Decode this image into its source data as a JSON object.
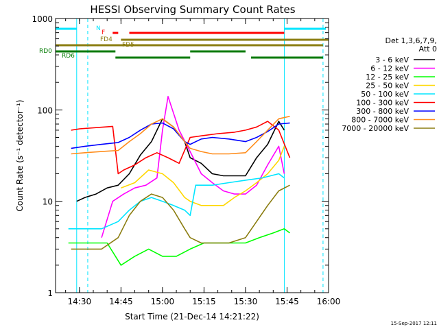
{
  "chart_data": {
    "type": "line",
    "title": "HESSI Observing Summary Count Rates",
    "xlabel": "Start Time (21-Dec-14 14:21:22)",
    "ylabel": "Count Rate (s⁻¹ detector⁻¹)",
    "y_scale": "log",
    "ylim": [
      1,
      1000
    ],
    "xlim": [
      "14:21:22",
      "16:00:00"
    ],
    "x_ticks": [
      "14:30",
      "14:45",
      "15:00",
      "15:15",
      "15:30",
      "15:45",
      "16:00"
    ],
    "y_ticks": [
      "1",
      "10",
      "100",
      "1000"
    ],
    "legend_header": [
      "Det 1,3,6,7,9,",
      "Att 0"
    ],
    "legend_position": "right",
    "footer": "15-Sep-2017 12:11",
    "series": [
      {
        "name": "3 - 6 keV",
        "color": "#000000",
        "x": [
          "14:29",
          "14:32",
          "14:36",
          "14:40",
          "14:44",
          "14:48",
          "14:52",
          "14:56",
          "15:00",
          "15:04",
          "15:08",
          "15:10",
          "15:14",
          "15:18",
          "15:22",
          "15:26",
          "15:30",
          "15:34",
          "15:38",
          "15:42",
          "15:44"
        ],
        "y": [
          10,
          11,
          12,
          14,
          15,
          20,
          32,
          45,
          80,
          65,
          45,
          30,
          26,
          20,
          19,
          19,
          19,
          30,
          42,
          75,
          60
        ]
      },
      {
        "name": "6 - 12 keV",
        "color": "#ff00ff",
        "x": [
          "14:38",
          "14:42",
          "14:46",
          "14:50",
          "14:54",
          "14:58",
          "15:00",
          "15:02",
          "15:06",
          "15:10",
          "15:14",
          "15:18",
          "15:22",
          "15:26",
          "15:30",
          "15:34",
          "15:38",
          "15:42",
          "15:44"
        ],
        "y": [
          4,
          10,
          12,
          14,
          15,
          18,
          60,
          140,
          60,
          35,
          20,
          16,
          13,
          12,
          12,
          15,
          25,
          40,
          20
        ]
      },
      {
        "name": "12 - 25 keV",
        "color": "#00ff00",
        "x": [
          "14:26",
          "14:40",
          "14:45",
          "14:50",
          "14:55",
          "15:00",
          "15:05",
          "15:10",
          "15:15",
          "15:20",
          "15:25",
          "15:30",
          "15:35",
          "15:40",
          "15:44",
          "15:46"
        ],
        "y": [
          3.5,
          3.5,
          2,
          2.5,
          3,
          2.5,
          2.5,
          3,
          3.5,
          3.5,
          3.5,
          3.5,
          4,
          4.5,
          5,
          4.5
        ]
      },
      {
        "name": "25 - 50 keV",
        "color": "#ffd700",
        "x": [
          "14:45",
          "14:50",
          "14:55",
          "15:00",
          "15:04",
          "15:08",
          "15:10",
          "15:14",
          "15:18",
          "15:22",
          "15:26",
          "15:30",
          "15:34",
          "15:38",
          "15:42",
          "15:44"
        ],
        "y": [
          14,
          16,
          22,
          20,
          16,
          11,
          10,
          9,
          9,
          9,
          11,
          13,
          16,
          20,
          28,
          40
        ]
      },
      {
        "name": "50 - 100 keV",
        "color": "#00e5ff",
        "x": [
          "14:26",
          "14:32",
          "14:38",
          "14:44",
          "14:48",
          "14:52",
          "14:56",
          "15:00",
          "15:04",
          "15:08",
          "15:10",
          "15:12",
          "15:18",
          "15:24",
          "15:30",
          "15:36",
          "15:42",
          "15:44"
        ],
        "y": [
          5,
          5,
          5,
          6,
          8,
          10,
          11,
          10,
          9,
          8,
          7,
          15,
          15,
          16,
          17,
          18,
          20,
          18
        ]
      },
      {
        "name": "100 - 300 keV",
        "color": "#ff0000",
        "x": [
          "14:27",
          "14:30",
          "14:36",
          "14:42",
          "14:44",
          "14:46",
          "14:50",
          "14:54",
          "14:58",
          "15:02",
          "15:06",
          "15:10",
          "15:14",
          "15:20",
          "15:26",
          "15:30",
          "15:34",
          "15:38",
          "15:42",
          "15:46"
        ],
        "y": [
          60,
          62,
          64,
          66,
          20,
          22,
          25,
          30,
          34,
          30,
          26,
          50,
          52,
          55,
          57,
          60,
          65,
          75,
          60,
          30
        ]
      },
      {
        "name": "300 - 800 keV",
        "color": "#0000ff",
        "x": [
          "14:27",
          "14:32",
          "14:38",
          "14:44",
          "14:48",
          "14:52",
          "14:56",
          "15:00",
          "15:04",
          "15:08",
          "15:10",
          "15:14",
          "15:18",
          "15:24",
          "15:30",
          "15:34",
          "15:38",
          "15:42",
          "15:46"
        ],
        "y": [
          38,
          40,
          42,
          44,
          50,
          60,
          70,
          72,
          62,
          45,
          42,
          48,
          50,
          48,
          45,
          50,
          58,
          70,
          72
        ]
      },
      {
        "name": "800 - 7000 keV",
        "color": "#ff8c1a",
        "x": [
          "14:27",
          "14:32",
          "14:38",
          "14:44",
          "14:48",
          "14:52",
          "14:56",
          "15:00",
          "15:04",
          "15:08",
          "15:10",
          "15:14",
          "15:18",
          "15:24",
          "15:30",
          "15:34",
          "15:38",
          "15:42",
          "15:46"
        ],
        "y": [
          33,
          34,
          35,
          36,
          45,
          55,
          70,
          80,
          65,
          45,
          38,
          35,
          33,
          33,
          34,
          45,
          60,
          80,
          85
        ]
      },
      {
        "name": "7000 - 20000 keV",
        "color": "#8b7d10",
        "x": [
          "14:27",
          "14:32",
          "14:38",
          "14:44",
          "14:48",
          "14:52",
          "14:56",
          "15:00",
          "15:04",
          "15:08",
          "15:10",
          "15:14",
          "15:18",
          "15:24",
          "15:30",
          "15:34",
          "15:38",
          "15:42",
          "15:46"
        ],
        "y": [
          3,
          3,
          3,
          4,
          7,
          10,
          12,
          11,
          8,
          5,
          4,
          3.5,
          3.5,
          3.5,
          4,
          6,
          9,
          13,
          15
        ]
      }
    ],
    "flag_bars": [
      {
        "label": "N",
        "color": "#00e5ff",
        "segments": [
          [
            "14:21:22",
            "14:29"
          ],
          [
            "15:44",
            "15:59"
          ]
        ]
      },
      {
        "label": "F",
        "color": "#ff0000",
        "segments": [
          [
            "14:42",
            "14:44"
          ],
          [
            "14:48",
            "15:44"
          ]
        ]
      },
      {
        "label": "FD4",
        "color": "#8b7d10",
        "segments": [
          [
            "14:45",
            "16:00"
          ]
        ]
      },
      {
        "label": "FD5",
        "color": "#8b7d10",
        "segments": [
          [
            "14:21:22",
            "15:58"
          ]
        ]
      },
      {
        "label": "RD0",
        "color": "#007a00",
        "segments": [
          [
            "14:21:22",
            "14:43"
          ],
          [
            "15:10",
            "15:30"
          ]
        ]
      },
      {
        "label": "RD6",
        "color": "#007a00",
        "segments": [
          [
            "14:43",
            "15:10"
          ],
          [
            "15:32",
            "15:58"
          ]
        ]
      }
    ],
    "vertical_lines": [
      {
        "color": "#00e5ff",
        "style": "solid",
        "x": [
          "14:29",
          "15:44"
        ]
      },
      {
        "color": "#00e5ff",
        "style": "dashed",
        "x": [
          "14:33",
          "15:58"
        ]
      }
    ]
  }
}
